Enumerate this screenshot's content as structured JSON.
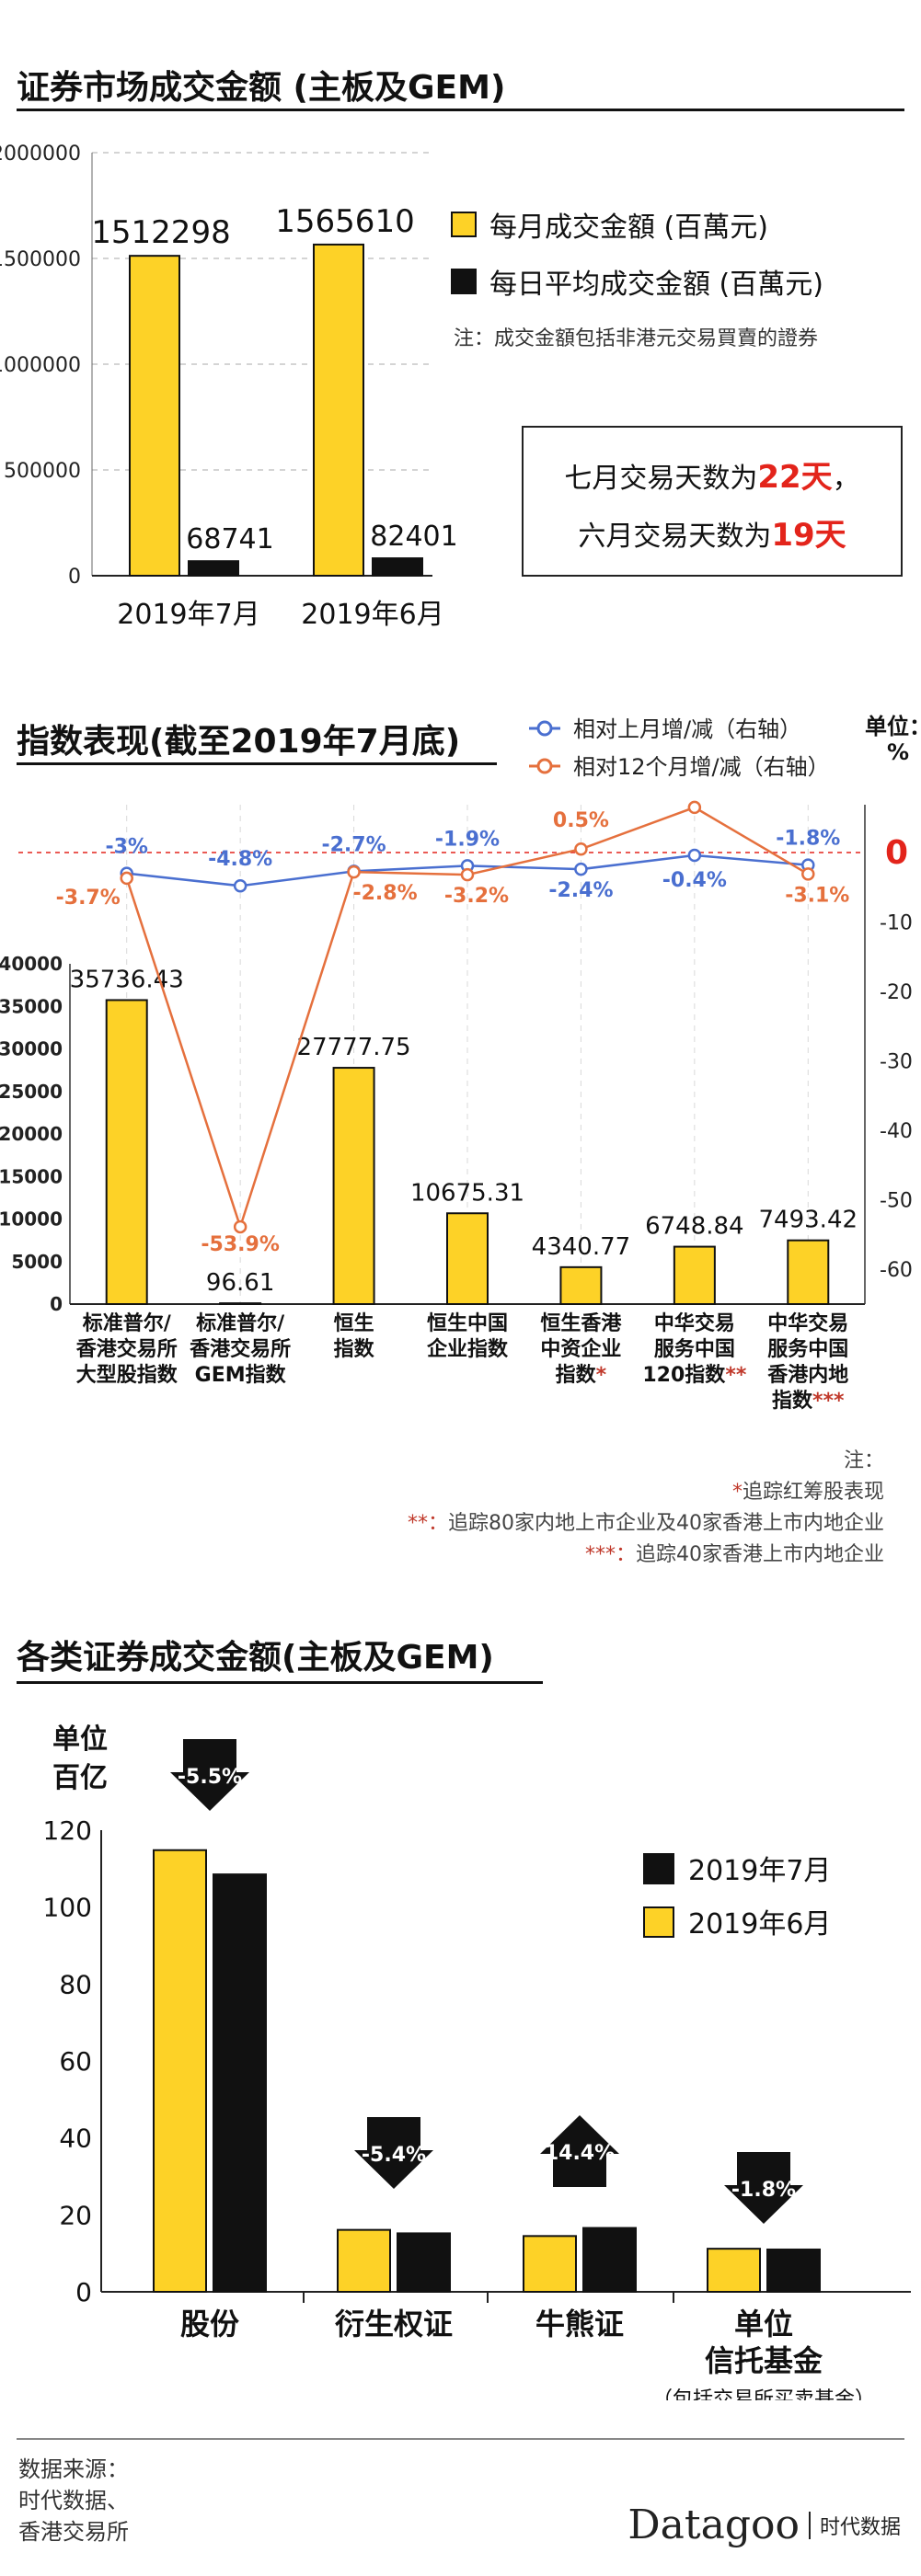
{
  "colors": {
    "yellow": "#fdd227",
    "black": "#111111",
    "blue": "#4a6fd0",
    "orange": "#e5703d",
    "red": "#e3241b"
  },
  "section1": {
    "title": "证券市场成交金额 (主板及GEM)",
    "legend": [
      "每月成交金額 (百萬元)",
      "每日平均成交金額 (百萬元)"
    ],
    "note": "注：成交金額包括非港元交易買賣的證券",
    "days": {
      "july_prefix": "七月交易天数为",
      "july_value": "22天",
      "july_suffix": "，",
      "june_prefix": "六月交易天数为",
      "june_value": "19天"
    }
  },
  "section2": {
    "title": "指数表现(截至2019年7月底)",
    "legend": [
      "相对上月增/减（右轴）",
      "相对12个月增/减（右轴）"
    ],
    "unit_label": "单位：",
    "unit_symbol": "%",
    "notes": {
      "label": "注：",
      "n1_mark": "*",
      "n1": "追踪红筹股表现",
      "n2_mark": "**：",
      "n2": "追踪80家内地上市企业及40家香港上市内地企业",
      "n3_mark": "***：",
      "n3": "追踪40家香港上市内地企业"
    }
  },
  "section3": {
    "title": "各类证券成交金额(主板及GEM)",
    "unit_label": [
      "单位",
      "百亿"
    ]
  },
  "footer": {
    "source": "数据来源：\n时代数据、\n香港交易所",
    "brand": "Datagoo",
    "brand_sub": "时代数据"
  },
  "chart_data": [
    {
      "type": "bar",
      "categories": [
        "2019年7月",
        "2019年6月"
      ],
      "series": [
        {
          "name": "每月成交金額 (百萬元)",
          "values": [
            1512298,
            1565610
          ]
        },
        {
          "name": "每日平均成交金額 (百萬元)",
          "values": [
            68741,
            82401
          ]
        }
      ],
      "yticks": [
        "0",
        "500000",
        "1000000",
        "1500000",
        "2000000"
      ],
      "ylim": [
        0,
        2000000
      ],
      "grid": true,
      "legend_position": "right"
    },
    {
      "type": "bar",
      "categories": [
        [
          "标准普尔/",
          "香港交易所",
          "大型股指数"
        ],
        [
          "标准普尔/",
          "香港交易所",
          "GEM指数"
        ],
        [
          "恒生",
          "指数"
        ],
        [
          "恒生中国",
          "企业指数"
        ],
        [
          "恒生香港",
          "中资企业",
          "指数*"
        ],
        [
          "中华交易",
          "服务中国",
          "120指数**"
        ],
        [
          "中华交易",
          "服务中国",
          "香港内地",
          "指数***"
        ]
      ],
      "values": [
        35736.43,
        96.61,
        27777.75,
        10675.31,
        4340.77,
        6748.84,
        7493.42
      ],
      "value_labels": [
        "35736.43",
        "96.61",
        "27777.75",
        "10675.31",
        "4340.77",
        "6748.84",
        "7493.42"
      ],
      "yticks_left": [
        "0",
        "5000",
        "10000",
        "15000",
        "20000",
        "25000",
        "30000",
        "35000",
        "40000"
      ],
      "ylim_left": [
        0,
        40000
      ],
      "yticks_right": [
        "0",
        "-10",
        "-20",
        "-30",
        "-40",
        "-50",
        "-60"
      ],
      "ylim_right": [
        -60,
        10
      ],
      "lines": [
        {
          "name": "相对上月增/减（右轴）",
          "values": [
            -3,
            -4.8,
            -2.7,
            -1.9,
            -2.4,
            -0.4,
            -1.8
          ],
          "labels": [
            "-3%",
            "-4.8%",
            "-2.7%",
            "-1.9%",
            "-2.4%",
            "-0.4%",
            "-1.8%"
          ]
        },
        {
          "name": "相对12个月增/减（右轴）",
          "values": [
            -3.7,
            -53.9,
            -2.8,
            -3.2,
            0.5,
            6.5,
            -3.1
          ],
          "labels": [
            "-3.7%",
            "-53.9%",
            "-2.8%",
            "-3.2%",
            "0.5%",
            "6.5%",
            "-3.1%"
          ]
        }
      ]
    },
    {
      "type": "bar",
      "categories": [
        [
          "股份"
        ],
        [
          "衍生权证"
        ],
        [
          "牛熊证"
        ],
        [
          "单位",
          "信托基金",
          "（包括交易所买卖基金）"
        ]
      ],
      "series": [
        {
          "name": "2019年7月",
          "values": [
            108.5,
            15.2,
            16.6,
            11
          ]
        },
        {
          "name": "2019年6月",
          "values": [
            114.8,
            16.1,
            14.5,
            11.2
          ]
        }
      ],
      "changes": [
        {
          "label": "-5.5%",
          "direction": "down"
        },
        {
          "label": "-5.4%",
          "direction": "down"
        },
        {
          "label": "14.4%",
          "direction": "up"
        },
        {
          "label": "-1.8%",
          "direction": "down"
        }
      ],
      "yticks": [
        "0",
        "20",
        "40",
        "60",
        "80",
        "100",
        "120"
      ],
      "ylim": [
        0,
        120
      ],
      "legend_position": "right"
    }
  ]
}
